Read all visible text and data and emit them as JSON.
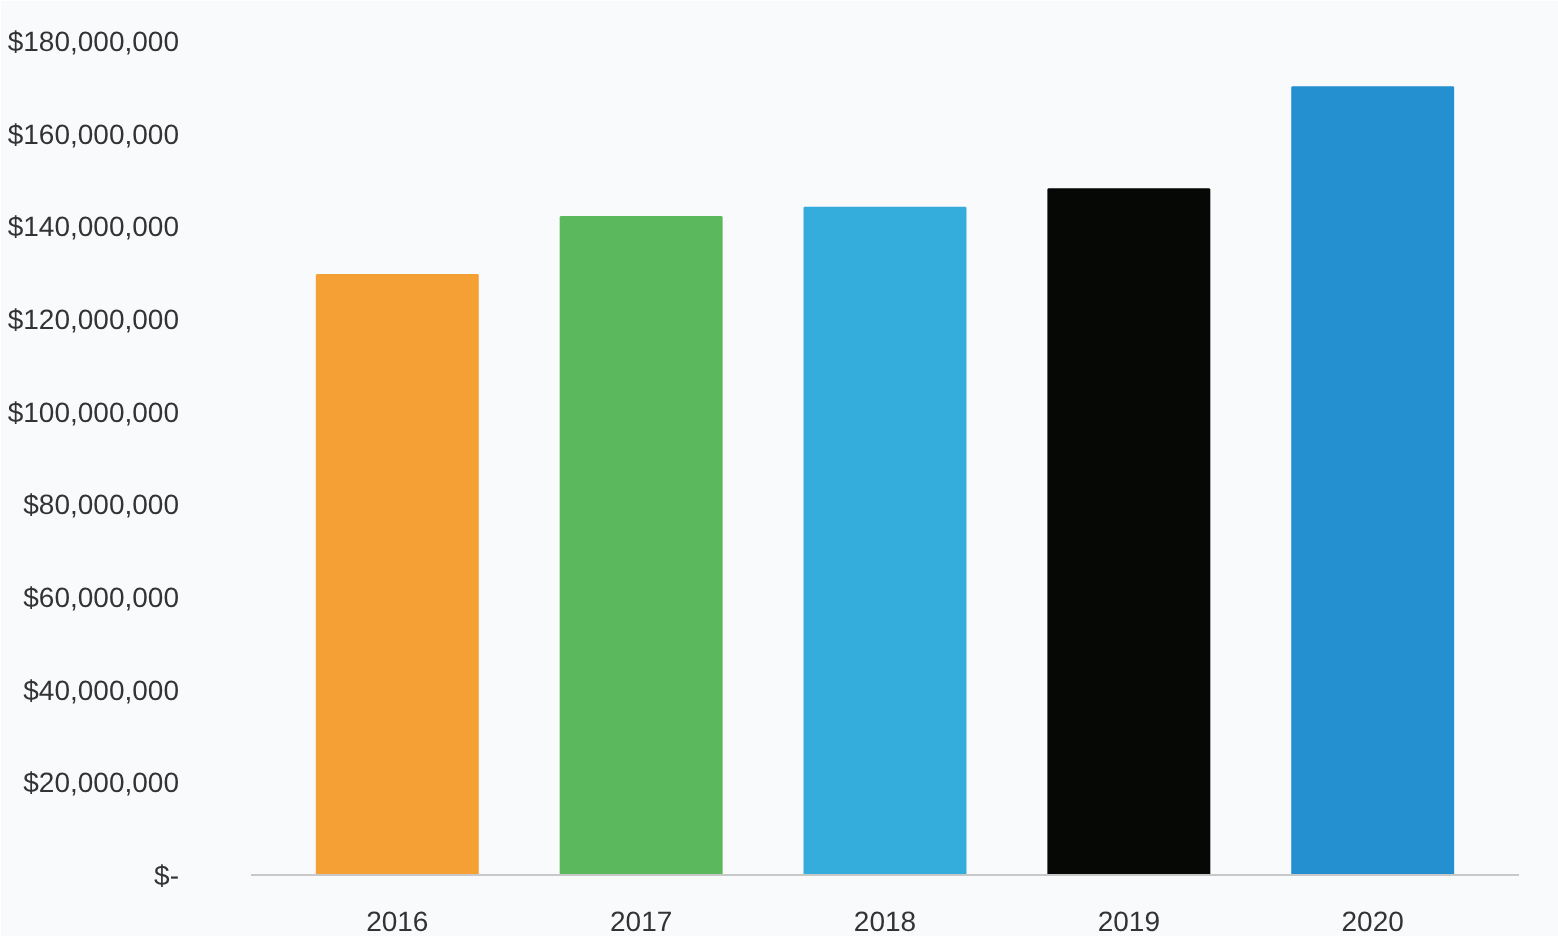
{
  "chart_data": {
    "type": "bar",
    "categories": [
      "2016",
      "2017",
      "2018",
      "2019",
      "2020"
    ],
    "values": [
      129500000,
      142000000,
      144000000,
      148000000,
      170000000
    ],
    "colors": [
      "#f4a035",
      "#5cb85c",
      "#34acdc",
      "#050805",
      "#2590d0"
    ],
    "ylim": [
      0,
      180000000
    ],
    "yticks": [
      {
        "value": 0,
        "label": "$-"
      },
      {
        "value": 20000000,
        "label": "$20,000,000"
      },
      {
        "value": 40000000,
        "label": "$40,000,000"
      },
      {
        "value": 60000000,
        "label": "$60,000,000"
      },
      {
        "value": 80000000,
        "label": "$80,000,000"
      },
      {
        "value": 100000000,
        "label": "$100,000,000"
      },
      {
        "value": 120000000,
        "label": "$120,000,000"
      },
      {
        "value": 140000000,
        "label": "$140,000,000"
      },
      {
        "value": 160000000,
        "label": "$160,000,000"
      },
      {
        "value": 180000000,
        "label": "$180,000,000"
      }
    ],
    "grid": false
  }
}
